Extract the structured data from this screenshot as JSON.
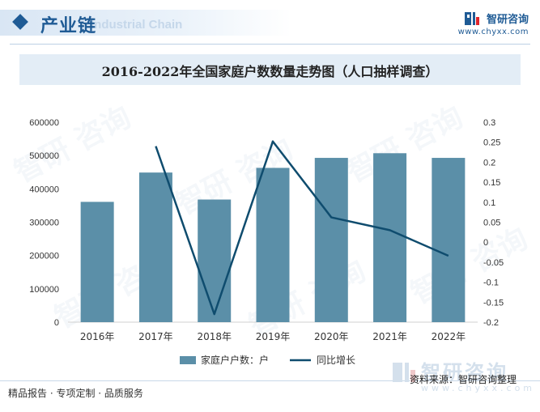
{
  "header": {
    "section_title": "产业链",
    "section_subtitle": "Industrial Chain",
    "brand_name": "智研咨询",
    "brand_url": "www.chyxx.com"
  },
  "chart_data": {
    "type": "bar+line",
    "title": "2016-2022年全国家庭户数数量走势图（人口抽样调查）",
    "categories": [
      "2016年",
      "2017年",
      "2018年",
      "2019年",
      "2020年",
      "2021年",
      "2022年"
    ],
    "series": [
      {
        "name": "家庭户户数：户",
        "type": "bar",
        "axis": "left",
        "color": "#5b8fa8",
        "values": [
          361000,
          449000,
          368000,
          463000,
          493000,
          507000,
          493000
        ]
      },
      {
        "name": "同比增长",
        "type": "line",
        "axis": "right",
        "color": "#0f4c6e",
        "values": [
          null,
          0.24,
          -0.18,
          0.252,
          0.062,
          0.03,
          -0.034
        ]
      }
    ],
    "y_left": {
      "min": 0,
      "max": 600000,
      "ticks": [
        "0",
        "100000",
        "200000",
        "300000",
        "400000",
        "500000",
        "600000"
      ]
    },
    "y_right": {
      "min": -0.2,
      "max": 0.3,
      "ticks": [
        "-0.2",
        "-0.15",
        "-0.1",
        "-0.05",
        "0",
        "0.05",
        "0.1",
        "0.15",
        "0.2",
        "0.25",
        "0.3"
      ]
    },
    "grid": false,
    "legend_position": "bottom"
  },
  "footer": {
    "slogan": "精品报告 · 专项定制 · 品质服务",
    "source": "资料来源：智研咨询整理",
    "logo_name": "智研咨询",
    "logo_url": "www.chyxx.com"
  }
}
